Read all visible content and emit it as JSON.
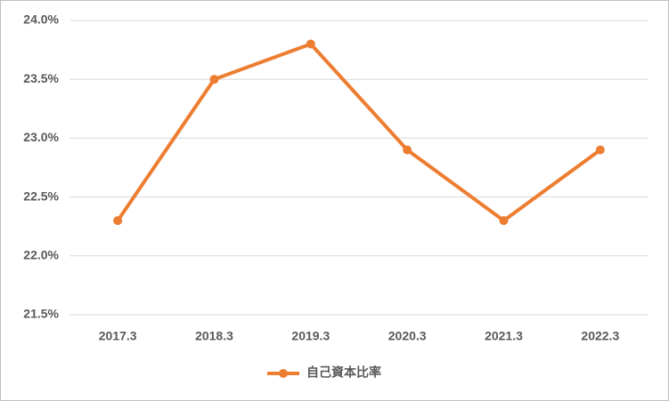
{
  "chart_data": {
    "type": "line",
    "categories": [
      "2017.3",
      "2018.3",
      "2019.3",
      "2020.3",
      "2021.3",
      "2022.3"
    ],
    "series": [
      {
        "name": "自己資本比率",
        "color": "#ed7d31",
        "values": [
          22.3,
          23.5,
          23.8,
          22.9,
          22.3,
          22.9
        ]
      }
    ],
    "ylim": [
      21.5,
      24.0
    ],
    "yticks": [
      {
        "value": 21.5,
        "label": "21.5%"
      },
      {
        "value": 22.0,
        "label": "22.0%"
      },
      {
        "value": 22.5,
        "label": "22.5%"
      },
      {
        "value": 23.0,
        "label": "23.0%"
      },
      {
        "value": 23.5,
        "label": "23.5%"
      },
      {
        "value": 24.0,
        "label": "24.0%"
      }
    ],
    "grid": true,
    "legend": "bottom"
  }
}
